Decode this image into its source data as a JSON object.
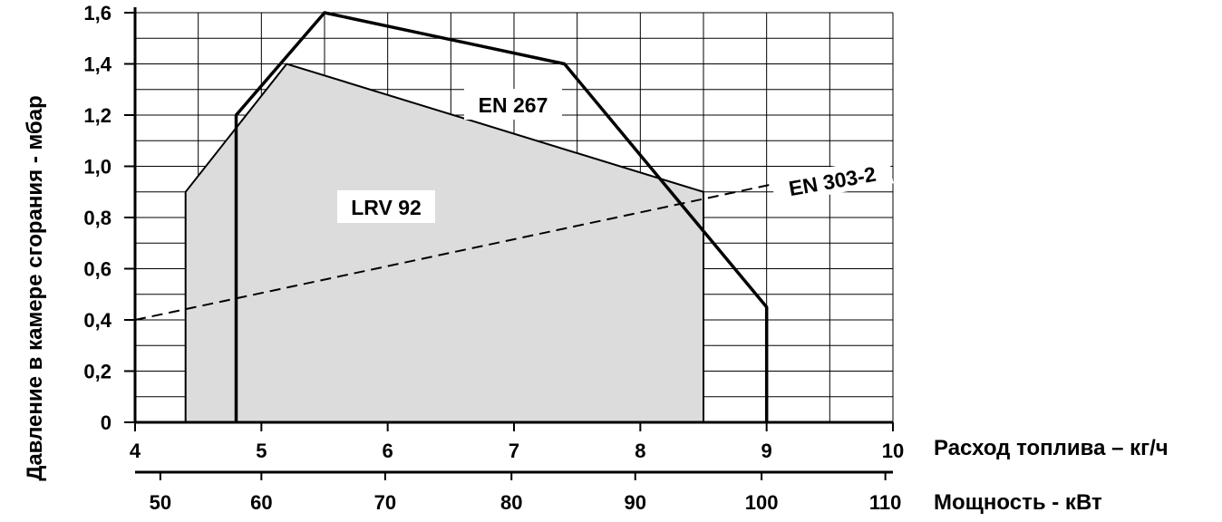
{
  "chart_data": {
    "type": "line",
    "title": "",
    "ylabel": "Давление в камере сгорания - мбар",
    "xlabel": "Расход топлива – кг/ч",
    "x2label": "Мощность - кВт",
    "xlim": [
      4,
      10
    ],
    "ylim": [
      0,
      1.6
    ],
    "x_ticks": [
      "4",
      "5",
      "6",
      "7",
      "8",
      "9",
      "10"
    ],
    "y_ticks": [
      "0",
      "0,2",
      "0,4",
      "0,6",
      "0,8",
      "1,0",
      "1,2",
      "1,4",
      "1,6"
    ],
    "x2_ticks": [
      {
        "label": "50",
        "x": 4.2
      },
      {
        "label": "60",
        "x": 5.0
      },
      {
        "label": "70",
        "x": 5.98
      },
      {
        "label": "80",
        "x": 6.98
      },
      {
        "label": "90",
        "x": 7.96
      },
      {
        "label": "100",
        "x": 8.96
      },
      {
        "label": "110",
        "x": 9.94
      }
    ],
    "grid": true,
    "series": [
      {
        "name": "LRV 92",
        "style": "filled-area",
        "points": [
          [
            4.4,
            0
          ],
          [
            4.4,
            0.9
          ],
          [
            5.2,
            1.4
          ],
          [
            8.5,
            0.9
          ],
          [
            8.5,
            0
          ]
        ]
      },
      {
        "name": "EN 267",
        "style": "thick-line",
        "points": [
          [
            4.8,
            0
          ],
          [
            4.8,
            1.2
          ],
          [
            5.5,
            1.6
          ],
          [
            7.4,
            1.4
          ],
          [
            9.0,
            0.45
          ],
          [
            9.0,
            0
          ]
        ]
      },
      {
        "name": "EN 303-2",
        "style": "dashed-line",
        "points": [
          [
            4.0,
            0.4
          ],
          [
            10.0,
            1.03
          ]
        ]
      }
    ]
  },
  "colors": {
    "fill": "#dcdcdc",
    "line": "#000000",
    "grid": "#000000"
  }
}
